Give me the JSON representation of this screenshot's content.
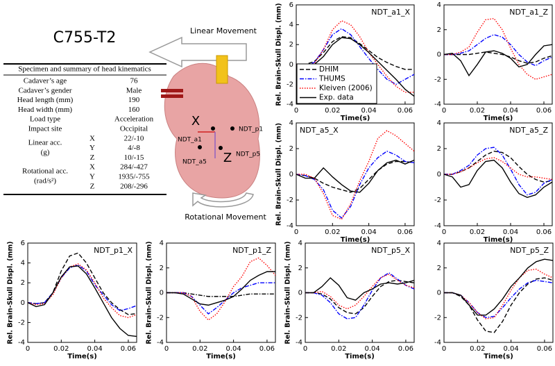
{
  "title": "C755-T2",
  "table": {
    "header": "Specimen and summary of head kinematics",
    "rows": [
      {
        "label": "Cadaver’s age",
        "value": 76
      },
      {
        "label": "Cadaver’s gender",
        "value": "Male"
      },
      {
        "label": "Head length (mm)",
        "value": 190
      },
      {
        "label": "Head width (mm)",
        "value": 160
      },
      {
        "label": "Load type",
        "value": "Acceleration"
      },
      {
        "label": "Impact site",
        "value": "Occipital"
      }
    ],
    "groups": [
      {
        "label": "Linear acc.",
        "unit": "(g)",
        "items": [
          {
            "axis": "X",
            "value": "22/-10"
          },
          {
            "axis": "Y",
            "value": "4/-8"
          },
          {
            "axis": "Z",
            "value": "10/-15"
          }
        ]
      },
      {
        "label": "Rotational acc.",
        "unit": "(rad/s²)",
        "items": [
          {
            "axis": "X",
            "value": "284/-427"
          },
          {
            "axis": "Y",
            "value": "1935/-755"
          },
          {
            "axis": "Z",
            "value": "208/-296"
          }
        ]
      }
    ]
  },
  "diagram": {
    "linear": "Linear Movement",
    "rotational": "Rotational Movement",
    "axes": [
      "X",
      "Z"
    ],
    "points": [
      "NDT_a1",
      "NDT_p1",
      "NDT_a5",
      "NDT_p5"
    ]
  },
  "chart_data": [
    {
      "type": "line",
      "title": "NDT_a1_X",
      "x_label": "Time(s)",
      "y_label": "Rel. Brain-Skull Displ. (mm)",
      "legend": "lower-left",
      "x": [
        0,
        0.005,
        0.01,
        0.015,
        0.02,
        0.025,
        0.03,
        0.035,
        0.04,
        0.045,
        0.05,
        0.055,
        0.06,
        0.065
      ],
      "xlim": [
        0,
        0.065
      ],
      "xticks": [
        0,
        0.02,
        0.04,
        0.06
      ],
      "ylim": [
        -4,
        6
      ],
      "yticks": [
        -4,
        -2,
        0,
        2,
        4,
        6
      ],
      "series": [
        {
          "name": "DHIM",
          "color": "#000000",
          "dash": "dashed",
          "values": [
            0,
            0,
            0.3,
            1.2,
            2.3,
            2.8,
            2.7,
            2.1,
            1.4,
            0.7,
            0.2,
            -0.2,
            -0.5,
            -0.5
          ]
        },
        {
          "name": "THUMS",
          "color": "#0000ff",
          "dash": "dashdot",
          "values": [
            0,
            -0.1,
            0.2,
            1.5,
            3.0,
            3.6,
            3.0,
            1.8,
            0.6,
            -0.5,
            -1.5,
            -2.0,
            -1.5,
            -1.0
          ]
        },
        {
          "name": "Kleiven (2006)",
          "color": "#ff0000",
          "dash": "dotted",
          "values": [
            0,
            -0.2,
            0.1,
            1.5,
            3.5,
            4.4,
            4.0,
            2.8,
            1.2,
            0,
            -1.2,
            -2.2,
            -2.8,
            -2.8
          ]
        },
        {
          "name": "Exp. data",
          "color": "#000000",
          "dash": "solid",
          "values": [
            0,
            -0.2,
            0,
            0.8,
            2.0,
            2.7,
            2.6,
            2.0,
            1.2,
            0.3,
            -0.6,
            -1.5,
            -2.5,
            -3.2
          ]
        }
      ]
    },
    {
      "type": "line",
      "title": "NDT_a1_Z",
      "x_label": "Time(s)",
      "x": [
        0,
        0.005,
        0.01,
        0.015,
        0.02,
        0.025,
        0.03,
        0.035,
        0.04,
        0.045,
        0.05,
        0.055,
        0.06,
        0.065
      ],
      "xlim": [
        0,
        0.065
      ],
      "xticks": [
        0,
        0.02,
        0.04,
        0.06
      ],
      "ylim": [
        -4,
        4
      ],
      "yticks": [
        -4,
        -2,
        0,
        2,
        4
      ],
      "series": [
        {
          "color": "#000000",
          "dash": "dashed",
          "values": [
            0,
            0,
            0,
            0,
            0.1,
            0.2,
            0.1,
            0,
            -0.2,
            -0.5,
            -0.7,
            -0.6,
            -0.3,
            -0.1
          ]
        },
        {
          "color": "#0000ff",
          "dash": "dashdot",
          "values": [
            0,
            0,
            0.1,
            0.3,
            0.8,
            1.3,
            1.6,
            1.4,
            0.8,
            0,
            -0.6,
            -0.9,
            -0.5,
            -0.2
          ]
        },
        {
          "color": "#ff0000",
          "dash": "dotted",
          "values": [
            0,
            0,
            0.2,
            0.6,
            1.8,
            2.8,
            2.9,
            2.0,
            0.5,
            -0.8,
            -1.6,
            -2.0,
            -1.8,
            -1.6
          ]
        },
        {
          "color": "#000000",
          "dash": "solid",
          "values": [
            0,
            0.1,
            -0.5,
            -1.7,
            -0.8,
            0.2,
            0.3,
            0.1,
            -0.3,
            -1.0,
            -0.8,
            0,
            0.7,
            0.8
          ]
        }
      ]
    },
    {
      "type": "line",
      "title": "NDT_a5_X",
      "x_label": "Time(s)",
      "y_label": "Rel. Brain-Skull Displ. (mm)",
      "x": [
        0,
        0.005,
        0.01,
        0.015,
        0.02,
        0.025,
        0.03,
        0.035,
        0.04,
        0.045,
        0.05,
        0.055,
        0.06,
        0.065
      ],
      "xlim": [
        0,
        0.065
      ],
      "xticks": [
        0,
        0.02,
        0.04,
        0.06
      ],
      "ylim": [
        -4,
        4
      ],
      "yticks": [
        -4,
        -2,
        0,
        2,
        4
      ],
      "series": [
        {
          "color": "#000000",
          "dash": "dashed",
          "values": [
            0,
            -0.1,
            -0.3,
            -0.7,
            -1.0,
            -1.2,
            -1.4,
            -1.1,
            -0.4,
            0.3,
            0.8,
            1.0,
            1.0,
            0.9
          ]
        },
        {
          "color": "#0000ff",
          "dash": "dashdot",
          "values": [
            0,
            -0.1,
            -0.4,
            -1.2,
            -2.8,
            -3.4,
            -2.5,
            -0.8,
            0.5,
            1.3,
            1.8,
            1.5,
            1.0,
            0.9
          ]
        },
        {
          "color": "#ff0000",
          "dash": "dotted",
          "values": [
            0,
            0,
            -0.3,
            -1.5,
            -3.2,
            -3.5,
            -2.3,
            -0.5,
            1.0,
            2.8,
            3.4,
            3.0,
            2.4,
            1.8
          ]
        },
        {
          "color": "#000000",
          "dash": "solid",
          "values": [
            0,
            -0.3,
            -0.3,
            0.5,
            -0.2,
            -0.8,
            -1.3,
            -1.4,
            -0.7,
            0.3,
            0.9,
            1.1,
            0.8,
            1.1
          ]
        }
      ]
    },
    {
      "type": "line",
      "title": "NDT_a5_Z",
      "x_label": "Time(s)",
      "x": [
        0,
        0.005,
        0.01,
        0.015,
        0.02,
        0.025,
        0.03,
        0.035,
        0.04,
        0.045,
        0.05,
        0.055,
        0.06,
        0.065
      ],
      "xlim": [
        0,
        0.065
      ],
      "xticks": [
        0,
        0.02,
        0.04,
        0.06
      ],
      "ylim": [
        -4,
        4
      ],
      "yticks": [
        -4,
        -2,
        0,
        2,
        4
      ],
      "series": [
        {
          "color": "#000000",
          "dash": "dashed",
          "values": [
            0,
            0,
            0.2,
            0.5,
            1.0,
            1.5,
            1.8,
            1.7,
            1.3,
            0.6,
            0,
            -0.4,
            -0.6,
            -0.5
          ]
        },
        {
          "color": "#0000ff",
          "dash": "dashdot",
          "values": [
            0,
            0,
            0.3,
            0.7,
            1.5,
            2.0,
            2.1,
            1.5,
            0.4,
            -0.8,
            -1.6,
            -1.4,
            -0.7,
            -0.4
          ]
        },
        {
          "color": "#ff0000",
          "dash": "dotted",
          "values": [
            0,
            0,
            0.2,
            0.5,
            0.9,
            1.2,
            1.3,
            1.0,
            0.5,
            0,
            -0.2,
            -0.2,
            -0.3,
            -0.4
          ]
        },
        {
          "color": "#000000",
          "dash": "solid",
          "values": [
            0,
            -0.2,
            -1.0,
            -0.8,
            0.3,
            1.0,
            1.1,
            0.5,
            -0.6,
            -1.5,
            -1.8,
            -1.6,
            -1.0,
            -0.6
          ]
        }
      ]
    },
    {
      "type": "line",
      "title": "NDT_p1_X",
      "x_label": "Time(s)",
      "y_label": "Rel. Brain-Skull Displ. (mm)",
      "x": [
        0,
        0.005,
        0.01,
        0.015,
        0.02,
        0.025,
        0.03,
        0.035,
        0.04,
        0.045,
        0.05,
        0.055,
        0.06,
        0.065
      ],
      "xlim": [
        0,
        0.065
      ],
      "xticks": [
        0,
        0.02,
        0.04,
        0.06
      ],
      "ylim": [
        -4,
        6
      ],
      "yticks": [
        -4,
        -2,
        0,
        2,
        4,
        6
      ],
      "series": [
        {
          "color": "#000000",
          "dash": "dashed",
          "values": [
            0,
            -0.1,
            0,
            1.0,
            3.2,
            4.7,
            5.0,
            4.0,
            2.5,
            1.0,
            0,
            -0.7,
            -1.2,
            -1.1
          ]
        },
        {
          "color": "#0000ff",
          "dash": "dashdot",
          "values": [
            0,
            -0.1,
            0,
            1.0,
            2.5,
            3.5,
            3.8,
            3.2,
            1.8,
            0.8,
            -0.2,
            -0.8,
            -0.6,
            -0.3
          ]
        },
        {
          "color": "#ff0000",
          "dash": "dotted",
          "values": [
            0,
            -0.2,
            -0.1,
            0.8,
            2.5,
            3.6,
            3.9,
            3.3,
            2.0,
            0.5,
            -0.5,
            -1.3,
            -1.5,
            -1.2
          ]
        },
        {
          "color": "#000000",
          "dash": "solid",
          "values": [
            0,
            -0.4,
            -0.2,
            1.0,
            2.6,
            3.6,
            3.7,
            2.9,
            1.5,
            0,
            -1.5,
            -2.6,
            -3.3,
            -3.4
          ]
        }
      ]
    },
    {
      "type": "line",
      "title": "NDT_p1_Z",
      "x_label": "Time(s)",
      "y_label": "Rel. Brain-Skull Displ. (mm)",
      "x": [
        0,
        0.005,
        0.01,
        0.015,
        0.02,
        0.025,
        0.03,
        0.035,
        0.04,
        0.045,
        0.05,
        0.055,
        0.06,
        0.065
      ],
      "xlim": [
        0,
        0.065
      ],
      "xticks": [
        0,
        0.02,
        0.04,
        0.06
      ],
      "ylim": [
        -4,
        4
      ],
      "yticks": [
        -4,
        -2,
        0,
        2,
        4
      ],
      "series": [
        {
          "color": "#000000",
          "dash": "dashdot",
          "values": [
            0,
            0,
            0,
            -0.1,
            -0.2,
            -0.3,
            -0.3,
            -0.3,
            -0.3,
            -0.2,
            -0.1,
            -0.1,
            -0.1,
            -0.1
          ]
        },
        {
          "color": "#0000ff",
          "dash": "dashdot",
          "values": [
            0,
            0,
            0,
            -0.3,
            -1.0,
            -1.7,
            -1.2,
            -0.6,
            0,
            0.4,
            0.6,
            0.8,
            0.8,
            0.8
          ]
        },
        {
          "color": "#ff0000",
          "dash": "dotted",
          "values": [
            0,
            0,
            0,
            -0.3,
            -1.5,
            -2.2,
            -1.7,
            -0.7,
            0.5,
            1.3,
            2.5,
            2.8,
            2.2,
            1.4
          ]
        },
        {
          "color": "#000000",
          "dash": "solid",
          "values": [
            0,
            0,
            -0.1,
            -0.5,
            -0.9,
            -1.0,
            -0.8,
            -0.6,
            -0.3,
            0.3,
            1.0,
            1.4,
            1.7,
            1.7
          ]
        }
      ]
    },
    {
      "type": "line",
      "title": "NDT_p5_X",
      "x_label": "Time(s)",
      "y_label": "Rel. Brain-Skull Displ. (mm)",
      "x": [
        0,
        0.005,
        0.01,
        0.015,
        0.02,
        0.025,
        0.03,
        0.035,
        0.04,
        0.045,
        0.05,
        0.055,
        0.06,
        0.065
      ],
      "xlim": [
        0,
        0.065
      ],
      "xticks": [
        0,
        0.02,
        0.04,
        0.06
      ],
      "ylim": [
        -4,
        4
      ],
      "yticks": [
        -4,
        -2,
        0,
        2,
        4
      ],
      "series": [
        {
          "color": "#000000",
          "dash": "dashed",
          "values": [
            0,
            0,
            -0.1,
            -0.5,
            -1.2,
            -1.6,
            -1.7,
            -1.2,
            -0.3,
            0.5,
            0.9,
            1.0,
            0.9,
            0.8
          ]
        },
        {
          "color": "#0000ff",
          "dash": "dashdot",
          "values": [
            0,
            0,
            -0.2,
            -0.8,
            -1.7,
            -2.1,
            -2.0,
            -1.0,
            0.2,
            1.2,
            1.6,
            1.1,
            0.6,
            0.3
          ]
        },
        {
          "color": "#ff0000",
          "dash": "dotted",
          "values": [
            0,
            0,
            0.1,
            -0.3,
            -1.0,
            -1.3,
            -1.0,
            -0.3,
            0.5,
            1.2,
            1.5,
            1.0,
            0.6,
            0.4
          ]
        },
        {
          "color": "#000000",
          "dash": "solid",
          "values": [
            0,
            0,
            0.5,
            1.2,
            0.6,
            -0.4,
            -0.6,
            0,
            0.3,
            0.7,
            0.8,
            0.7,
            0.8,
            1.0
          ]
        }
      ]
    },
    {
      "type": "line",
      "title": "NDT_p5_Z",
      "x_label": "Time(s)",
      "x": [
        0,
        0.005,
        0.01,
        0.015,
        0.02,
        0.025,
        0.03,
        0.035,
        0.04,
        0.045,
        0.05,
        0.055,
        0.06,
        0.065
      ],
      "xlim": [
        0,
        0.065
      ],
      "xticks": [
        0,
        0.02,
        0.04,
        0.06
      ],
      "ylim": [
        -4,
        4
      ],
      "yticks": [
        -4,
        -2,
        0,
        2,
        4
      ],
      "series": [
        {
          "color": "#000000",
          "dash": "dashed",
          "values": [
            0,
            0,
            -0.3,
            -1.0,
            -2.2,
            -3.1,
            -3.2,
            -2.3,
            -1.0,
            0,
            0.7,
            1.1,
            1.2,
            1.0
          ]
        },
        {
          "color": "#0000ff",
          "dash": "dashdot",
          "values": [
            0,
            0,
            -0.2,
            -0.8,
            -1.6,
            -2.0,
            -1.9,
            -1.2,
            -0.4,
            0.3,
            0.8,
            1.0,
            0.9,
            0.8
          ]
        },
        {
          "color": "#ff0000",
          "dash": "dotted",
          "values": [
            0,
            0,
            -0.2,
            -0.8,
            -1.6,
            -2.1,
            -2.0,
            -1.0,
            0.2,
            1.2,
            1.8,
            1.9,
            1.5,
            1.2
          ]
        },
        {
          "color": "#000000",
          "dash": "solid",
          "values": [
            0,
            0,
            -0.2,
            -1.0,
            -1.8,
            -1.8,
            -1.3,
            -0.5,
            0.5,
            1.2,
            2.0,
            2.5,
            2.7,
            2.6
          ]
        }
      ]
    }
  ]
}
